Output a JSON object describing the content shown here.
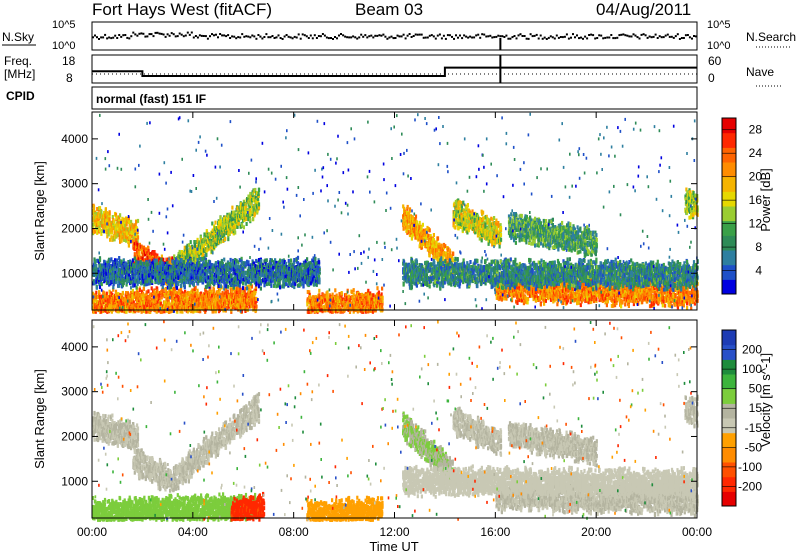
{
  "header": {
    "radar": "Fort Hays West (fitACF)",
    "beam": "Beam 03",
    "date": "04/Aug/2011"
  },
  "noise_panel": {
    "left_label": "N.Sky",
    "left_ticks": [
      "10^5",
      "10^0"
    ],
    "right_ticks": [
      "10^5",
      "10^0"
    ],
    "right_label": "N.Search"
  },
  "freq_panel": {
    "left_label_line1": "Freq.",
    "left_label_line2": "[MHz]",
    "left_ticks": [
      "18",
      "8"
    ],
    "right_ticks": [
      "60",
      "0"
    ],
    "right_label": "Nave",
    "cpid_label": "CPID",
    "cpid_text": "normal (fast) 151 IF"
  },
  "chart_data": [
    {
      "type": "heatmap",
      "name": "power",
      "ylabel": "Slant Range [km]",
      "xlabel": "Time UT",
      "yticks": [
        "1000",
        "2000",
        "3000",
        "4000"
      ],
      "ylim": [
        180,
        4600
      ],
      "xticks": [
        "00:00",
        "04:00",
        "08:00",
        "12:00",
        "16:00",
        "20:00",
        "00:00"
      ],
      "xlim_hours": [
        0,
        24
      ],
      "colorbar": {
        "label": "Power [dB]",
        "ticks": [
          "4",
          "8",
          "12",
          "16",
          "20",
          "24",
          "28"
        ],
        "range": [
          0,
          30
        ],
        "colors": [
          "#0000e0",
          "#1e50c8",
          "#2e7fa0",
          "#2e8b57",
          "#3aa048",
          "#9acd32",
          "#e6d800",
          "#f5b400",
          "#ff8c00",
          "#ff6400",
          "#ff2800",
          "#e60000"
        ]
      },
      "echo_bands": [
        {
          "t0": 0.0,
          "t1": 1.8,
          "r0": 2250,
          "r1": 1900,
          "level": 18
        },
        {
          "t0": 1.6,
          "t1": 3.2,
          "r0": 1500,
          "r1": 1050,
          "level": 24
        },
        {
          "t0": 3.2,
          "t1": 6.6,
          "r0": 1100,
          "r1": 2700,
          "level": 14
        },
        {
          "t0": 0.0,
          "t1": 6.5,
          "r0": 350,
          "r1": 450,
          "level": 22
        },
        {
          "t0": 0.0,
          "t1": 9.0,
          "r0": 1050,
          "r1": 1050,
          "level": 6
        },
        {
          "t0": 8.5,
          "t1": 11.5,
          "r0": 300,
          "r1": 380,
          "level": 22
        },
        {
          "t0": 12.3,
          "t1": 14.3,
          "r0": 2300,
          "r1": 1200,
          "level": 20
        },
        {
          "t0": 14.3,
          "t1": 16.2,
          "r0": 2400,
          "r1": 1900,
          "level": 16
        },
        {
          "t0": 16.0,
          "t1": 24.0,
          "r0": 700,
          "r1": 600,
          "level": 22
        },
        {
          "t0": 16.5,
          "t1": 20.0,
          "r0": 2100,
          "r1": 1700,
          "level": 10
        },
        {
          "t0": 12.3,
          "t1": 24.0,
          "r0": 1050,
          "r1": 1000,
          "level": 8
        },
        {
          "t0": 23.5,
          "t1": 24.0,
          "r0": 2600,
          "r1": 2600,
          "level": 14
        }
      ]
    },
    {
      "type": "heatmap",
      "name": "velocity",
      "ylabel": "Slant Range [km]",
      "xlabel": "Time UT",
      "yticks": [
        "1000",
        "2000",
        "3000",
        "4000"
      ],
      "ylim": [
        180,
        4600
      ],
      "xticks": [
        "00:00",
        "04:00",
        "08:00",
        "12:00",
        "16:00",
        "20:00",
        "00:00"
      ],
      "xlim_hours": [
        0,
        24
      ],
      "colorbar": {
        "label": "Velocity [m s^-1]",
        "ticks": [
          "200",
          "100",
          "50",
          "15",
          "-15",
          "-50",
          "-100",
          "-200"
        ],
        "range": [
          -250,
          250
        ],
        "colors": [
          "#1e3cb4",
          "#2850c8",
          "#1e8c3c",
          "#3cb43c",
          "#7ccd3c",
          "#b4b4a0",
          "#c8c8b4",
          "#ffa000",
          "#ff8c00",
          "#ff5000",
          "#ff2800",
          "#e60000"
        ]
      },
      "echo_bands": [
        {
          "t0": 0.0,
          "t1": 1.8,
          "r0": 2300,
          "r1": 2000,
          "level": 0
        },
        {
          "t0": 1.6,
          "t1": 3.2,
          "r0": 1500,
          "r1": 1050,
          "level": 0
        },
        {
          "t0": 3.2,
          "t1": 6.6,
          "r0": 1100,
          "r1": 2700,
          "level": 0
        },
        {
          "t0": 0.0,
          "t1": 6.5,
          "r0": 350,
          "r1": 450,
          "level": 60
        },
        {
          "t0": 5.5,
          "t1": 6.8,
          "r0": 350,
          "r1": 450,
          "level": -180
        },
        {
          "t0": 8.5,
          "t1": 11.5,
          "r0": 300,
          "r1": 380,
          "level": -60
        },
        {
          "t0": 12.3,
          "t1": 14.3,
          "r0": 2300,
          "r1": 1200,
          "level": 40
        },
        {
          "t0": 14.3,
          "t1": 16.2,
          "r0": 2400,
          "r1": 1900,
          "level": 0
        },
        {
          "t0": 16.0,
          "t1": 24.0,
          "r0": 700,
          "r1": 600,
          "level": 0
        },
        {
          "t0": 16.5,
          "t1": 20.0,
          "r0": 2100,
          "r1": 1700,
          "level": 0
        },
        {
          "t0": 12.3,
          "t1": 24.0,
          "r0": 1050,
          "r1": 1000,
          "level": -20
        },
        {
          "t0": 23.5,
          "t1": 24.0,
          "r0": 2600,
          "r1": 2600,
          "level": 0
        }
      ]
    }
  ],
  "frequency_steps": [
    {
      "t0": 0.0,
      "t1": 2.0,
      "mhz": 12.5
    },
    {
      "t0": 2.0,
      "t1": 14.0,
      "mhz": 10.5
    },
    {
      "t0": 14.0,
      "t1": 24.0,
      "mhz": 14.0
    }
  ]
}
